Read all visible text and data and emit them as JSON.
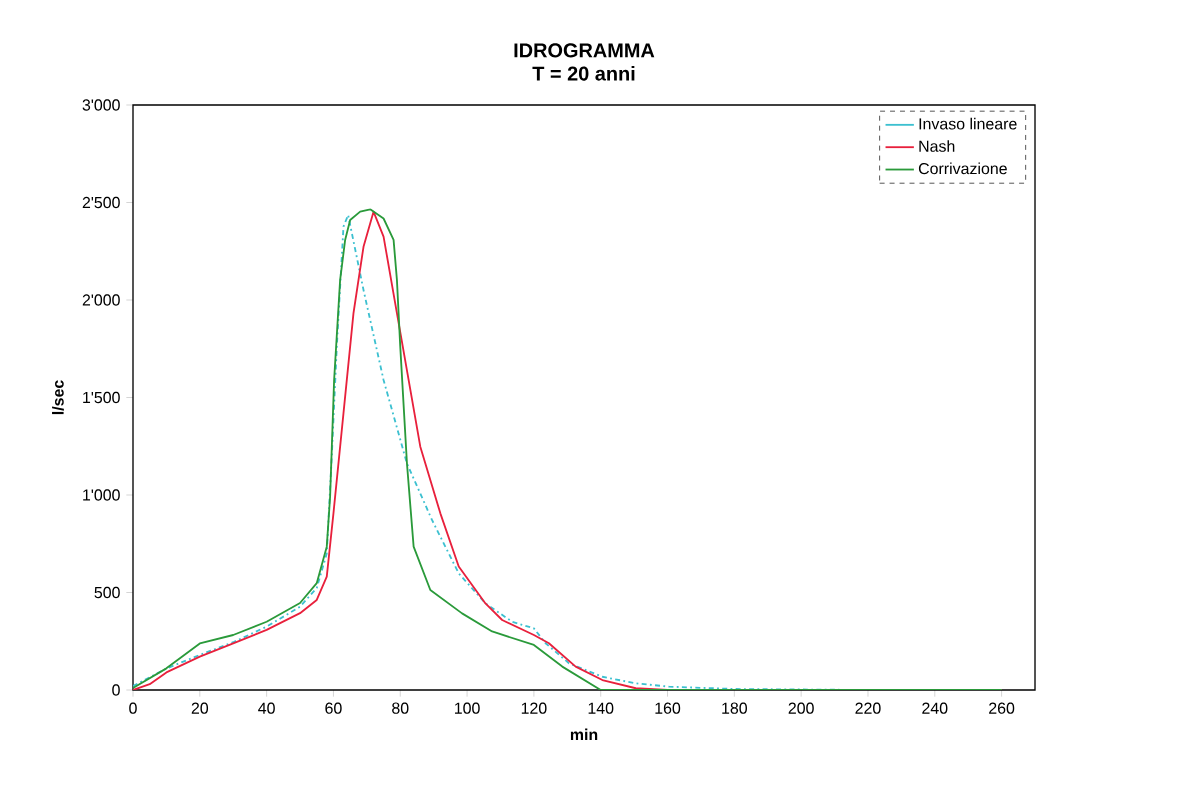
{
  "chart_data": {
    "type": "line",
    "title": "IDROGRAMMA",
    "subtitle": "T = 20 anni",
    "xlabel": "min",
    "ylabel": "l/sec",
    "xlim": [
      0,
      270
    ],
    "xticks": [
      0,
      20,
      40,
      60,
      80,
      100,
      120,
      140,
      160,
      180,
      200,
      220,
      240,
      260
    ],
    "ylim": [
      0,
      3000
    ],
    "yticks": [
      0,
      {
        "value": 500,
        "label": "500"
      },
      {
        "value": 1000,
        "label": "1'000"
      },
      {
        "value": 1500,
        "label": "1'500"
      },
      {
        "value": 2000,
        "label": "2'000"
      },
      {
        "value": 2500,
        "label": "2'500"
      },
      {
        "value": 3000,
        "label": "3'000"
      }
    ],
    "grid": false,
    "legend": "top right",
    "marker": "none",
    "series": [
      {
        "name": "Invaso lineare",
        "color": "#3cc0d0",
        "line_style": "dashed",
        "x": [
          0,
          10,
          20,
          30,
          40,
          50,
          55,
          58,
          59.5,
          61,
          63,
          64.4,
          69,
          75,
          82,
          89.5,
          97.5,
          105.5,
          113.5,
          120,
          123.5,
          130.5,
          140.5,
          150.5,
          160.5,
          180,
          220,
          260
        ],
        "values": [
          20,
          110,
          180,
          245,
          325,
          427,
          523,
          700,
          1200,
          1760,
          2376,
          2436,
          2051,
          1590,
          1162,
          872,
          598,
          444,
          350,
          316,
          240,
          137,
          68,
          34,
          17,
          5,
          0,
          0
        ]
      },
      {
        "name": "Nash",
        "color": "#e8203c",
        "x": [
          0,
          5,
          10,
          20,
          30,
          40,
          50,
          55,
          58,
          60,
          63,
          66,
          69,
          72,
          75,
          79,
          86,
          92,
          97.5,
          105.5,
          110.5,
          120,
          124.5,
          132.5,
          140.5,
          150.5,
          160,
          260
        ],
        "values": [
          0,
          30,
          90,
          171,
          239,
          308,
          394,
          462,
          581,
          906,
          1419,
          1933,
          2273,
          2453,
          2325,
          1933,
          1248,
          906,
          633,
          444,
          359,
          282,
          240,
          120,
          51,
          9,
          0,
          0
        ]
      },
      {
        "name": "Corrivazione",
        "color": "#2a9a3a",
        "x": [
          0,
          10,
          20,
          30,
          40,
          50,
          55,
          58,
          59,
          60.2,
          62,
          63.5,
          65,
          68,
          71,
          75,
          78,
          79,
          80,
          82,
          84,
          89,
          98.5,
          107.5,
          120,
          128.5,
          140,
          260
        ],
        "values": [
          10,
          111,
          239,
          282,
          350,
          446,
          548,
          735,
          991,
          1590,
          2103,
          2308,
          2410,
          2453,
          2465,
          2418,
          2308,
          2103,
          1761,
          1162,
          735,
          513,
          393,
          300,
          231,
          120,
          0,
          0
        ]
      }
    ]
  }
}
